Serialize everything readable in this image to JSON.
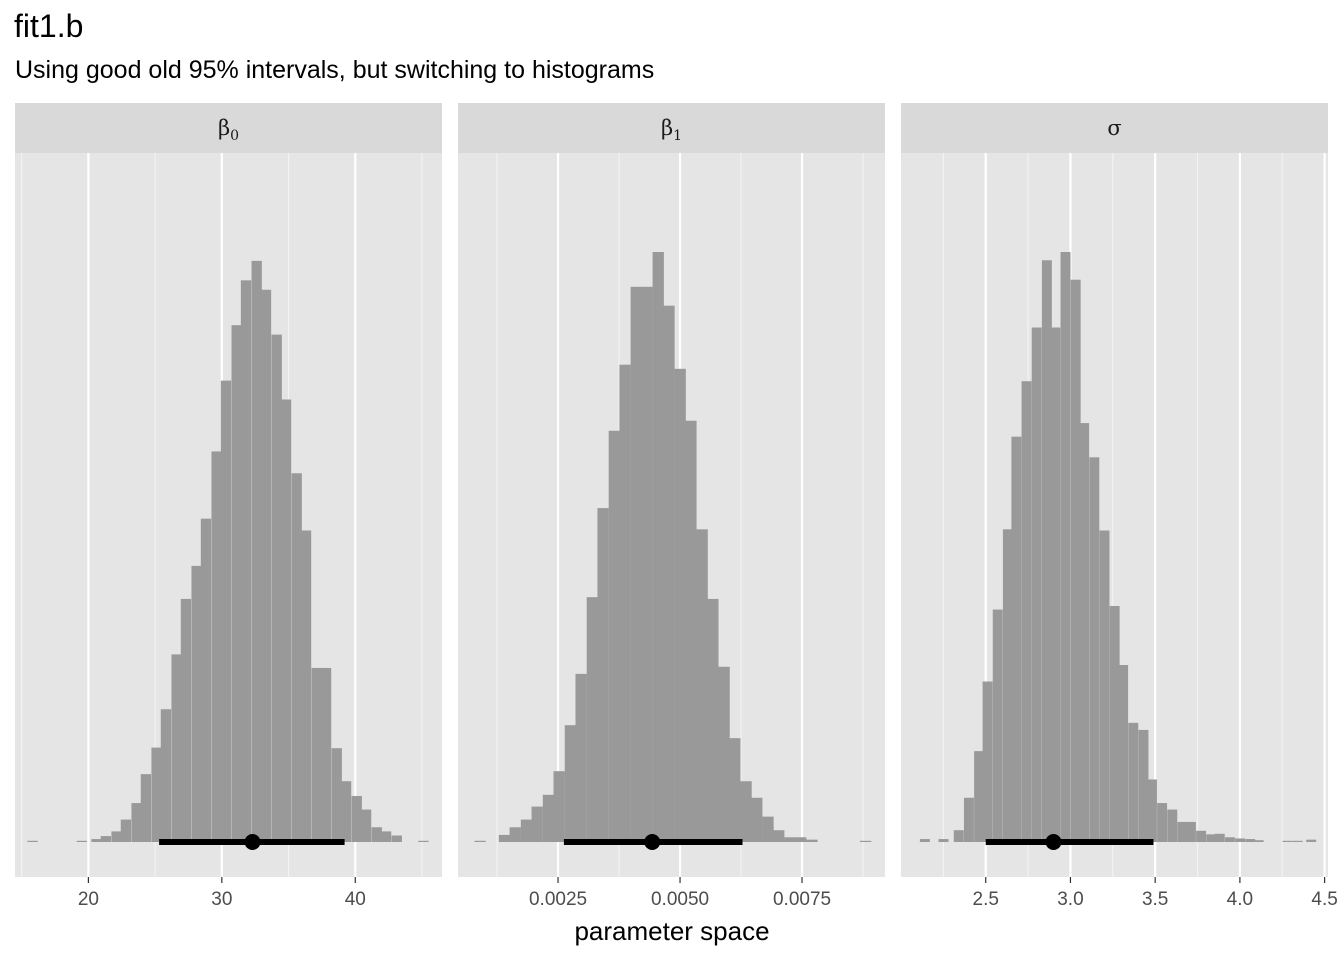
{
  "title": "fit1.b",
  "subtitle": "Using good old 95% intervals, but switching to histograms",
  "xlabel": "parameter space",
  "colors": {
    "panel_bg": "#e5e5e5",
    "strip_bg": "#d9d9d9",
    "grid": "#ffffff",
    "bar": "#999999",
    "interval": "#000000"
  },
  "chart_data": {
    "type": "bar",
    "panels": [
      {
        "strip_label": "β",
        "strip_sub": "0",
        "xlim": [
          14.5,
          46.5
        ],
        "ticks": [
          20,
          30,
          40
        ],
        "tick_labels": [
          "20",
          "30",
          "40"
        ],
        "minor_ticks": [
          15,
          25,
          35,
          45
        ],
        "bin_width": 0.75,
        "bins": [
          {
            "x": 15.8,
            "h": 0.001
          },
          {
            "x": 19.5,
            "h": 0.001
          },
          {
            "x": 20.6,
            "h": 0.005
          },
          {
            "x": 21.3,
            "h": 0.01
          },
          {
            "x": 22.1,
            "h": 0.018
          },
          {
            "x": 22.8,
            "h": 0.038
          },
          {
            "x": 23.6,
            "h": 0.066
          },
          {
            "x": 24.3,
            "h": 0.115
          },
          {
            "x": 25.1,
            "h": 0.16
          },
          {
            "x": 25.8,
            "h": 0.225
          },
          {
            "x": 26.6,
            "h": 0.318
          },
          {
            "x": 27.3,
            "h": 0.412
          },
          {
            "x": 28.1,
            "h": 0.468
          },
          {
            "x": 28.8,
            "h": 0.548
          },
          {
            "x": 29.6,
            "h": 0.662
          },
          {
            "x": 30.3,
            "h": 0.782
          },
          {
            "x": 31.1,
            "h": 0.876
          },
          {
            "x": 31.8,
            "h": 0.952
          },
          {
            "x": 32.6,
            "h": 0.985
          },
          {
            "x": 33.3,
            "h": 0.936
          },
          {
            "x": 34.1,
            "h": 0.86
          },
          {
            "x": 34.8,
            "h": 0.75
          },
          {
            "x": 35.6,
            "h": 0.625
          },
          {
            "x": 36.3,
            "h": 0.528
          },
          {
            "x": 37.1,
            "h": 0.295
          },
          {
            "x": 37.8,
            "h": 0.295
          },
          {
            "x": 38.6,
            "h": 0.159
          },
          {
            "x": 39.3,
            "h": 0.103
          },
          {
            "x": 40.1,
            "h": 0.078
          },
          {
            "x": 40.8,
            "h": 0.055
          },
          {
            "x": 41.6,
            "h": 0.025
          },
          {
            "x": 42.3,
            "h": 0.018
          },
          {
            "x": 43.1,
            "h": 0.011
          },
          {
            "x": 45.1,
            "h": 0.001
          }
        ],
        "interval": [
          25.3,
          39.2
        ],
        "point": 32.3
      },
      {
        "strip_label": "β",
        "strip_sub": "1",
        "xlim": [
          0.00045,
          0.0092
        ],
        "ticks": [
          0.0025,
          0.005,
          0.0075
        ],
        "tick_labels": [
          "0.0025",
          "0.0050",
          "0.0075"
        ],
        "minor_ticks": [
          0.00125,
          0.00375,
          0.00625,
          0.00875
        ],
        "bin_width": 0.000225,
        "bins": [
          {
            "x": 0.0009,
            "h": 0.001
          },
          {
            "x": 0.0014,
            "h": 0.012
          },
          {
            "x": 0.00162,
            "h": 0.025
          },
          {
            "x": 0.00185,
            "h": 0.038
          },
          {
            "x": 0.00207,
            "h": 0.06
          },
          {
            "x": 0.0023,
            "h": 0.08
          },
          {
            "x": 0.00252,
            "h": 0.12
          },
          {
            "x": 0.00275,
            "h": 0.198
          },
          {
            "x": 0.00297,
            "h": 0.285
          },
          {
            "x": 0.0032,
            "h": 0.415
          },
          {
            "x": 0.00342,
            "h": 0.566
          },
          {
            "x": 0.00365,
            "h": 0.697
          },
          {
            "x": 0.00387,
            "h": 0.809
          },
          {
            "x": 0.0041,
            "h": 0.941
          },
          {
            "x": 0.00432,
            "h": 0.941
          },
          {
            "x": 0.00455,
            "h": 1.0
          },
          {
            "x": 0.00477,
            "h": 0.909
          },
          {
            "x": 0.005,
            "h": 0.802
          },
          {
            "x": 0.00522,
            "h": 0.714
          },
          {
            "x": 0.00545,
            "h": 0.53
          },
          {
            "x": 0.00567,
            "h": 0.412
          },
          {
            "x": 0.0059,
            "h": 0.297
          },
          {
            "x": 0.00612,
            "h": 0.176
          },
          {
            "x": 0.00635,
            "h": 0.103
          },
          {
            "x": 0.00657,
            "h": 0.075
          },
          {
            "x": 0.0068,
            "h": 0.043
          },
          {
            "x": 0.00702,
            "h": 0.02
          },
          {
            "x": 0.00725,
            "h": 0.008
          },
          {
            "x": 0.00747,
            "h": 0.008
          },
          {
            "x": 0.0077,
            "h": 0.004
          },
          {
            "x": 0.0088,
            "h": 0.001
          }
        ],
        "interval": [
          0.00262,
          0.00628
        ],
        "point": 0.00443
      },
      {
        "strip_label": "σ",
        "strip_sub": "",
        "xlim": [
          2.0,
          4.52
        ],
        "ticks": [
          2.5,
          3.0,
          3.5,
          4.0,
          4.5
        ],
        "tick_labels": [
          "2.5",
          "3.0",
          "3.5",
          "4.0",
          "4.5"
        ],
        "minor_ticks": [
          2.25,
          2.75,
          3.25,
          3.75,
          4.25
        ],
        "bin_width": 0.057,
        "bins": [
          {
            "x": 2.14,
            "h": 0.005
          },
          {
            "x": 2.25,
            "h": 0.005
          },
          {
            "x": 2.34,
            "h": 0.02
          },
          {
            "x": 2.4,
            "h": 0.075
          },
          {
            "x": 2.46,
            "h": 0.154
          },
          {
            "x": 2.51,
            "h": 0.272
          },
          {
            "x": 2.57,
            "h": 0.394
          },
          {
            "x": 2.63,
            "h": 0.53
          },
          {
            "x": 2.68,
            "h": 0.687
          },
          {
            "x": 2.74,
            "h": 0.781
          },
          {
            "x": 2.8,
            "h": 0.872
          },
          {
            "x": 2.86,
            "h": 0.986
          },
          {
            "x": 2.91,
            "h": 0.872
          },
          {
            "x": 2.97,
            "h": 1.0
          },
          {
            "x": 3.03,
            "h": 0.953
          },
          {
            "x": 3.08,
            "h": 0.71
          },
          {
            "x": 3.14,
            "h": 0.652
          },
          {
            "x": 3.2,
            "h": 0.528
          },
          {
            "x": 3.26,
            "h": 0.4
          },
          {
            "x": 3.31,
            "h": 0.3
          },
          {
            "x": 3.37,
            "h": 0.202
          },
          {
            "x": 3.43,
            "h": 0.19
          },
          {
            "x": 3.48,
            "h": 0.106
          },
          {
            "x": 3.54,
            "h": 0.066
          },
          {
            "x": 3.6,
            "h": 0.055
          },
          {
            "x": 3.66,
            "h": 0.034
          },
          {
            "x": 3.71,
            "h": 0.034
          },
          {
            "x": 3.77,
            "h": 0.019
          },
          {
            "x": 3.83,
            "h": 0.013
          },
          {
            "x": 3.88,
            "h": 0.014
          },
          {
            "x": 3.94,
            "h": 0.008
          },
          {
            "x": 4.0,
            "h": 0.006
          },
          {
            "x": 4.06,
            "h": 0.005
          },
          {
            "x": 4.11,
            "h": 0.003
          },
          {
            "x": 4.28,
            "h": 0.002
          },
          {
            "x": 4.34,
            "h": 0.002
          },
          {
            "x": 4.42,
            "h": 0.004
          }
        ],
        "interval": [
          2.5,
          3.49
        ],
        "point": 2.9
      }
    ]
  }
}
